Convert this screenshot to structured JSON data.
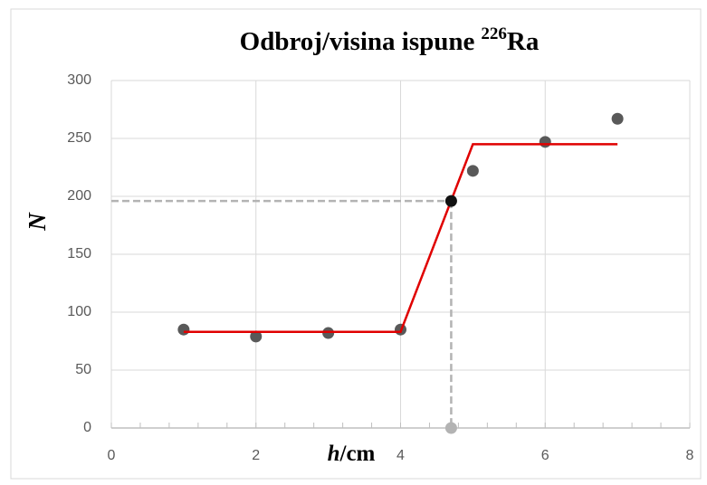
{
  "chart_data": {
    "type": "scatter",
    "title": {
      "text": "Odbroj/visina ispune",
      "isotope_mass": "226",
      "isotope": "Ra"
    },
    "xlabel": {
      "symbol": "h",
      "unit": "/cm"
    },
    "ylabel": "N",
    "xlim": [
      0,
      8
    ],
    "xticks": [
      0,
      2,
      4,
      6,
      8
    ],
    "xminor_step": 0.4,
    "ylim": [
      0,
      300
    ],
    "yticks": [
      0,
      50,
      100,
      150,
      200,
      250,
      300
    ],
    "grid": true,
    "series": [
      {
        "type": "scatter",
        "color": "#595959",
        "x": [
          1,
          2,
          3,
          4,
          5,
          6,
          7
        ],
        "values": [
          85,
          79,
          82,
          85,
          222,
          247,
          267
        ]
      },
      {
        "type": "line",
        "color": "#e00000",
        "x": [
          1,
          4,
          5,
          7
        ],
        "values": [
          83,
          83,
          245,
          245
        ]
      }
    ],
    "reading": {
      "x": 4.7,
      "y": 196,
      "color": "#111111",
      "guide_color": "#b3b3b3"
    }
  }
}
